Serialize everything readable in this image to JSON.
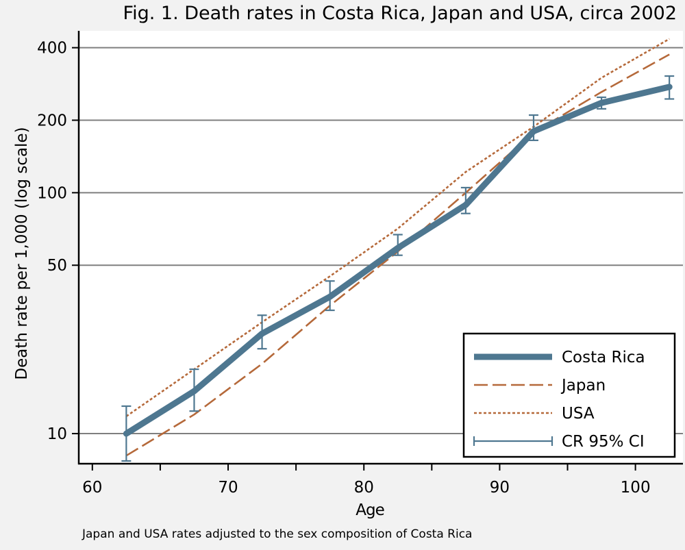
{
  "chart_data": {
    "type": "line",
    "title": "Fig. 1. Death rates in Costa Rica, Japan and USA, circa 2002",
    "xlabel": "Age",
    "ylabel": "Death rate per 1,000 (log scale)",
    "note": "Japan and USA rates adjusted to the sex composition of Costa Rica",
    "y_scale": "log",
    "xlim": [
      59,
      103.5
    ],
    "ylim": [
      7.5,
      470
    ],
    "x_ticks": [
      60,
      65,
      70,
      75,
      80,
      85,
      90,
      95,
      100
    ],
    "x_tick_labels": [
      "60",
      "70",
      "80",
      "90",
      "100"
    ],
    "x_tick_label_values": [
      60,
      70,
      80,
      90,
      100
    ],
    "y_ticks": [
      10,
      50,
      100,
      200,
      400
    ],
    "y_tick_labels": [
      "10",
      "50",
      "100",
      "200",
      "400"
    ],
    "grid": "horizontal",
    "legend_position": "bottom-right",
    "x": [
      62.5,
      67.5,
      72.5,
      77.5,
      82.5,
      87.5,
      92.5,
      97.5,
      102.5
    ],
    "series": [
      {
        "name": "Costa Rica",
        "style": "solid-thick",
        "color": "#4e7790",
        "values": [
          10,
          15,
          26,
          37,
          59,
          89,
          180,
          236,
          275
        ]
      },
      {
        "name": "Japan",
        "style": "dashed",
        "color": "#b5693a",
        "values": [
          8.1,
          12,
          19.5,
          34,
          57,
          100,
          178,
          262,
          375
        ]
      },
      {
        "name": "USA",
        "style": "dotted",
        "color": "#b5693a",
        "values": [
          11.8,
          18.5,
          29,
          45,
          71,
          122,
          188,
          300,
          435
        ]
      }
    ],
    "error_bars": {
      "name": "CR 95% CI",
      "color": "#4e7790",
      "lower": [
        7.7,
        12.4,
        22.5,
        32.5,
        55,
        82,
        165,
        223,
        245
      ],
      "upper": [
        13,
        18.5,
        31,
        43,
        67,
        105,
        210,
        249,
        305
      ]
    }
  }
}
